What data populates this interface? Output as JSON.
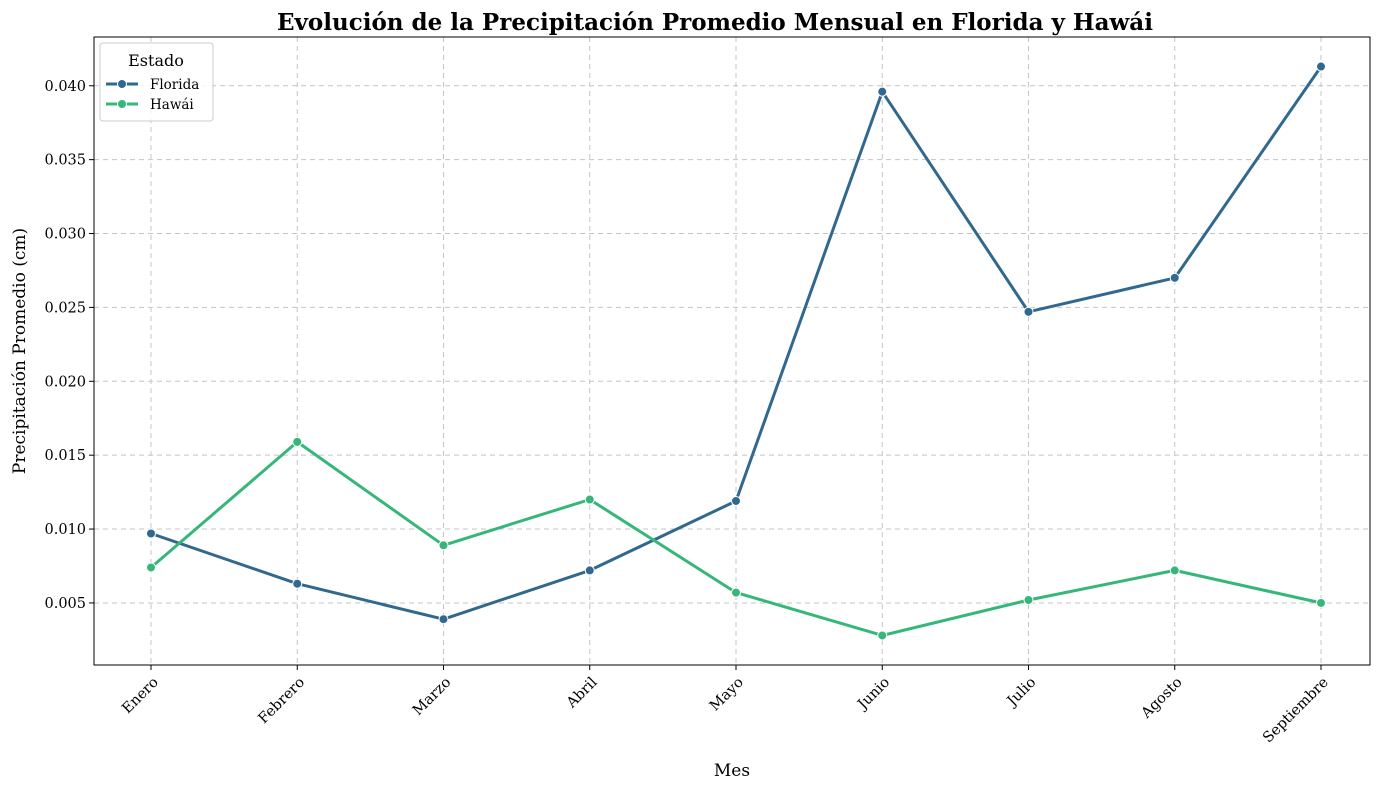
{
  "chart_data": {
    "type": "line",
    "title": "Evolución de la Precipitación Promedio Mensual en Florida y Hawái",
    "xlabel": "Mes",
    "ylabel": "Precipitación Promedio (cm)",
    "categories": [
      "Enero",
      "Febrero",
      "Marzo",
      "Abril",
      "Mayo",
      "Junio",
      "Julio",
      "Agosto",
      "Septiembre"
    ],
    "ylim": [
      0.0008,
      0.0433
    ],
    "yticks": [
      0.005,
      0.01,
      0.015,
      0.02,
      0.025,
      0.03,
      0.035,
      0.04
    ],
    "ytick_labels": [
      "0.005",
      "0.010",
      "0.015",
      "0.020",
      "0.025",
      "0.030",
      "0.035",
      "0.040"
    ],
    "grid": true,
    "legend": {
      "title": "Estado",
      "placement": "top-left"
    },
    "series": [
      {
        "name": "Florida",
        "color": "#31688e",
        "values": [
          0.0097,
          0.0063,
          0.0039,
          0.0072,
          0.0119,
          0.0396,
          0.0247,
          0.027,
          0.0413
        ]
      },
      {
        "name": "Hawái",
        "color": "#35b779",
        "values": [
          0.0074,
          0.0159,
          0.0089,
          0.012,
          0.0057,
          0.0028,
          0.0052,
          0.0072,
          0.005
        ]
      }
    ]
  }
}
